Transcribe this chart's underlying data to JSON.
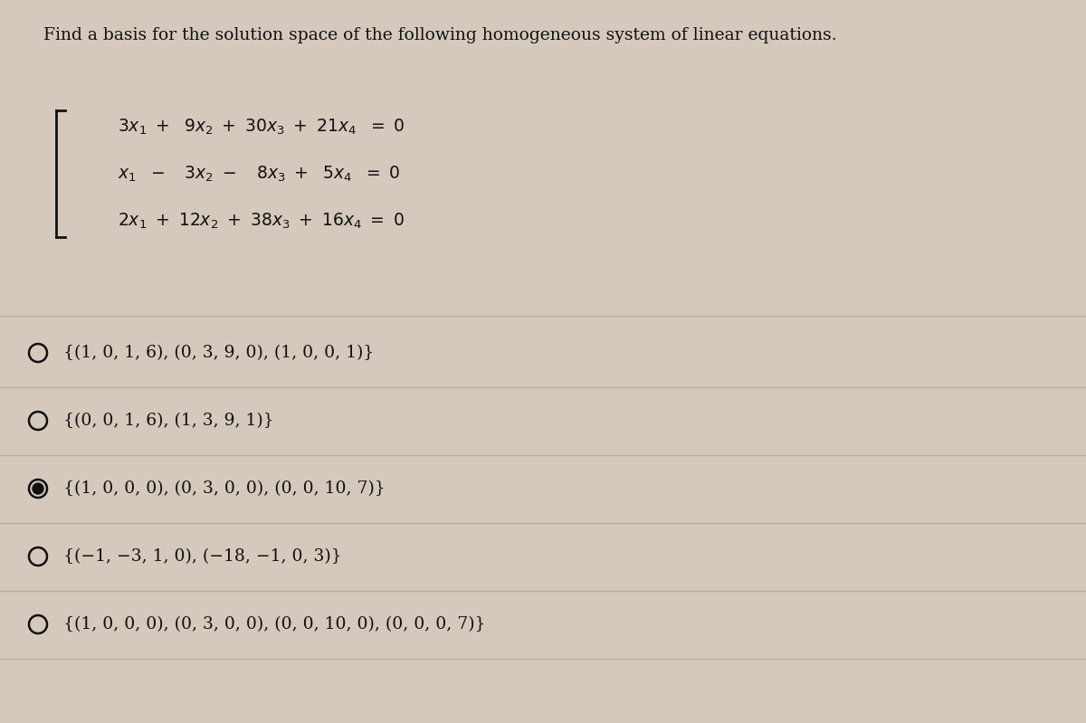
{
  "title": "Find a basis for the solution space of the following homogeneous system of linear equations.",
  "title_fontsize": 13.5,
  "bg_color": "#d4c9bc",
  "panel_color": "#e2d8cc",
  "options": [
    {
      "text": "{(1, 0, 1, 6), (0, 3, 9, 0), (1, 0, 0, 1)}",
      "selected": false
    },
    {
      "text": "{(0, 0, 1, 6), (1, 3, 9, 1)}",
      "selected": false
    },
    {
      "text": "{(1, 0, 0, 0), (0, 3, 0, 0), (0, 0, 10, 7)}",
      "selected": true
    },
    {
      "text": "{(−1, −3, 1, 0), (−18, −1, 0, 3)}",
      "selected": false
    },
    {
      "text": "{(1, 0, 0, 0), (0, 3, 0, 0), (0, 0, 10, 0), (0, 0, 0, 7)}",
      "selected": false
    }
  ],
  "option_fontsize": 13.5,
  "eq_fontsize": 13.5,
  "line_color": "#b8aba0",
  "text_color": "#111111"
}
